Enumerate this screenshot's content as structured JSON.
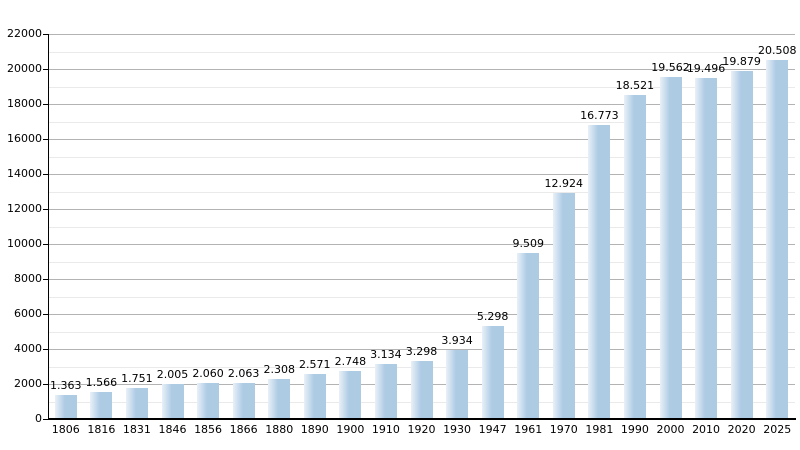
{
  "chart_data": {
    "type": "bar",
    "title": "",
    "xlabel": "",
    "ylabel": "",
    "categories": [
      "1806",
      "1816",
      "1831",
      "1846",
      "1856",
      "1866",
      "1880",
      "1890",
      "1900",
      "1910",
      "1920",
      "1930",
      "1947",
      "1961",
      "1970",
      "1981",
      "1990",
      "2000",
      "2010",
      "2020",
      "2025"
    ],
    "values": [
      1363,
      1566,
      1751,
      2005,
      2060,
      2063,
      2308,
      2571,
      2748,
      3134,
      3298,
      3934,
      5298,
      9509,
      12924,
      16773,
      18521,
      19562,
      19496,
      19879,
      20508
    ],
    "bar_labels": [
      "1.363",
      "1.566",
      "1.751",
      "2.005",
      "2.060",
      "2.063",
      "2.308",
      "2.571",
      "2.748",
      "3.134",
      "3.298",
      "3.934",
      "5.298",
      "9.509",
      "12.924",
      "16.773",
      "18.521",
      "19.562",
      "19.496",
      "19.879",
      "20.508"
    ],
    "ylim": [
      0,
      22000
    ],
    "y_tick_step": 2000,
    "y_minor_step": 1000,
    "y_tick_labels": [
      "0",
      "2000",
      "4000",
      "6000",
      "8000",
      "10000",
      "12000",
      "14000",
      "16000",
      "18000",
      "20000",
      "22000"
    ],
    "grid": true,
    "legend": "none",
    "colors": {
      "bar_base": "#aecbe4",
      "bar_edge_highlight": "#e9f1f8",
      "major_grid": "#b3b3b3",
      "minor_grid": "#eaeaea",
      "axis": "#000000",
      "text": "#000000",
      "background": "#ffffff"
    }
  }
}
